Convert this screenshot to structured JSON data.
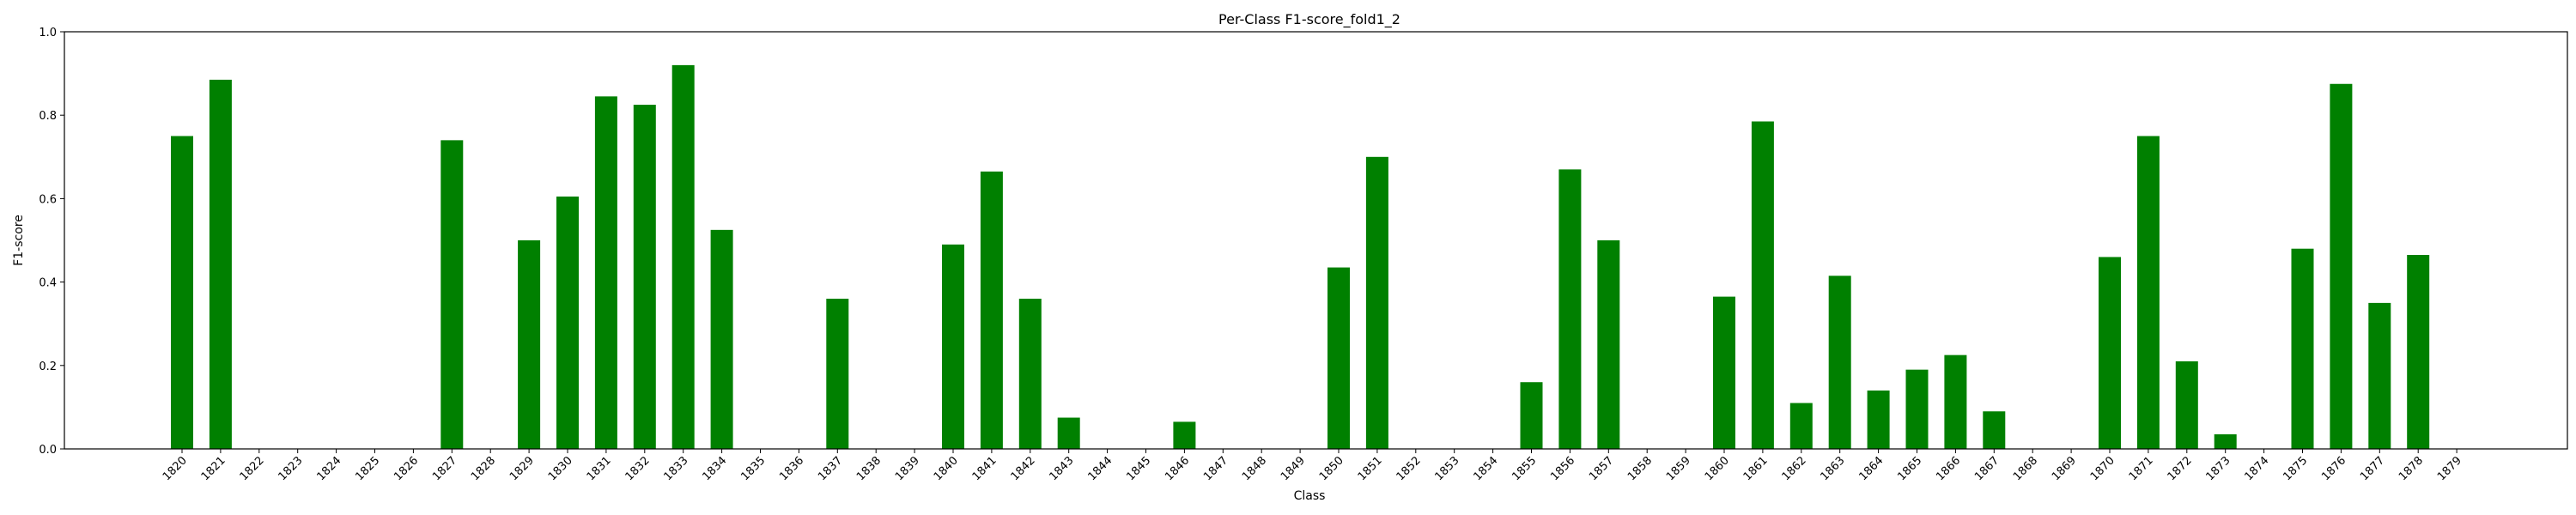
{
  "chart_data": {
    "type": "bar",
    "title": "Per-Class F1-score_fold1_2",
    "xlabel": "Class",
    "ylabel": "F1-score",
    "ylim": [
      0,
      1.0
    ],
    "yticks": [
      "0.0",
      "0.2",
      "0.4",
      "0.6",
      "0.8",
      "1.0"
    ],
    "bar_color": "#008000",
    "grid": false,
    "categories": [
      "1820",
      "1821",
      "1822",
      "1823",
      "1824",
      "1825",
      "1826",
      "1827",
      "1828",
      "1829",
      "1830",
      "1831",
      "1832",
      "1833",
      "1834",
      "1835",
      "1836",
      "1837",
      "1838",
      "1839",
      "1840",
      "1841",
      "1842",
      "1843",
      "1844",
      "1845",
      "1846",
      "1847",
      "1848",
      "1849",
      "1850",
      "1851",
      "1852",
      "1853",
      "1854",
      "1855",
      "1856",
      "1857",
      "1858",
      "1859",
      "1860",
      "1861",
      "1862",
      "1863",
      "1864",
      "1865",
      "1866",
      "1867",
      "1868",
      "1869",
      "1870",
      "1871",
      "1872",
      "1873",
      "1874",
      "1875",
      "1876",
      "1877",
      "1878",
      "1879"
    ],
    "values": [
      0.75,
      0.885,
      0,
      0,
      0,
      0,
      0,
      0.74,
      0,
      0.5,
      0.605,
      0.845,
      0.825,
      0.92,
      0.525,
      0,
      0,
      0.36,
      0,
      0,
      0.49,
      0.665,
      0.36,
      0.075,
      0,
      0,
      0.065,
      0,
      0,
      0,
      0.435,
      0.7,
      0,
      0,
      0,
      0.16,
      0.67,
      0.5,
      0,
      0,
      0.365,
      0.785,
      0.11,
      0.415,
      0.14,
      0.19,
      0.225,
      0.09,
      0,
      0,
      0.46,
      0.75,
      0.21,
      0.035,
      0,
      0.48,
      0.875,
      0.35,
      0.465,
      0
    ]
  }
}
